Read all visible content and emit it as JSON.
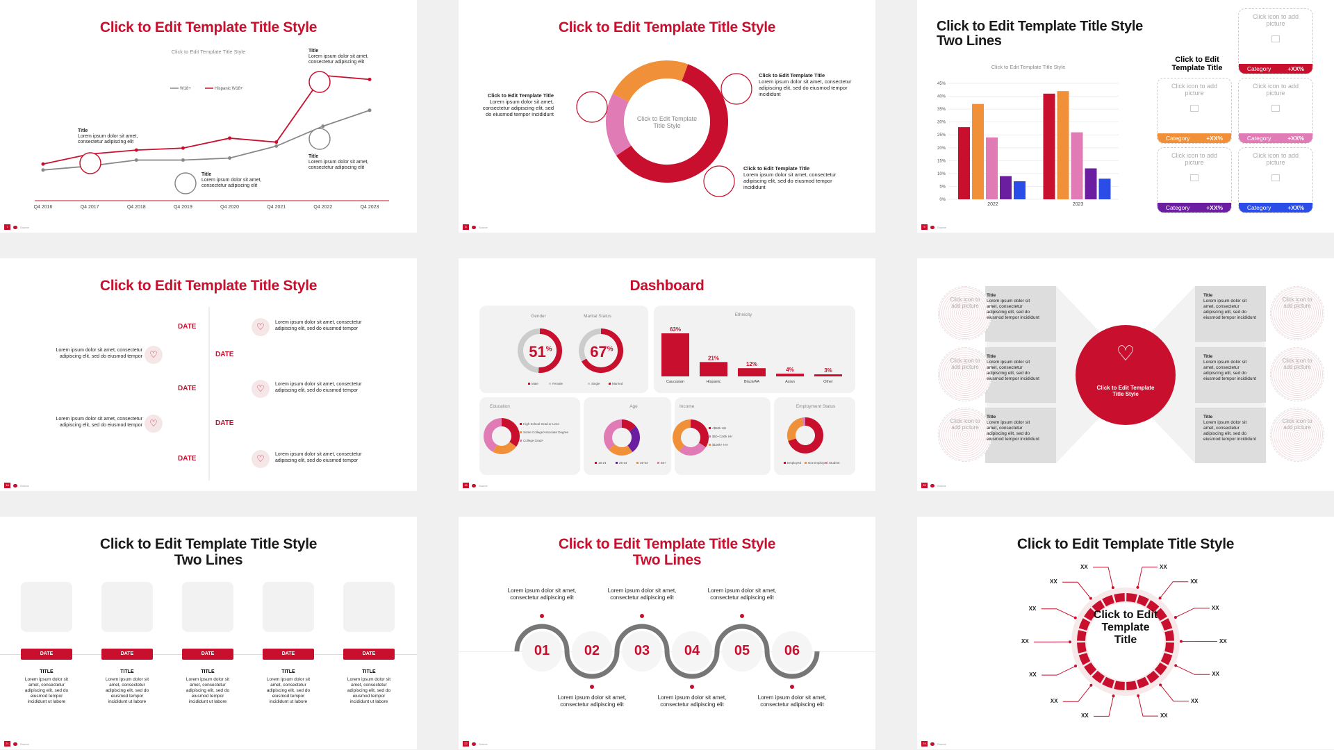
{
  "footer": {
    "source": "Source"
  },
  "slide1": {
    "page": "7",
    "title": "Click to Edit Template Title Style",
    "subtitle": "Click to Edit Template Title Style",
    "legend": [
      "W18+",
      "Hispanic W18+"
    ],
    "title_label": "Title",
    "body": "Lorem ipsum dolor sit amet, consectetur adipiscing elit",
    "chart_data": {
      "type": "line",
      "categories": [
        "Q4 2016",
        "Q4 2017",
        "Q4 2018",
        "Q4 2019",
        "Q4 2020",
        "Q4 2021",
        "Q4 2022",
        "Q4 2023"
      ],
      "series": [
        {
          "name": "W18+",
          "values": [
            12,
            16,
            22,
            22,
            24,
            36,
            56,
            72
          ]
        },
        {
          "name": "Hispanic W18+",
          "values": [
            18,
            28,
            32,
            34,
            44,
            40,
            107,
            103
          ]
        }
      ],
      "ylim": [
        0,
        120
      ],
      "colors": {
        "W18+": "#888888",
        "Hispanic W18+": "#c8102e"
      }
    }
  },
  "slide2": {
    "page": "8",
    "title": "Click to Edit Template Title Style",
    "center": "Click to Edit Template Title Style",
    "callout_title": "Click to Edit Template Title",
    "callout_body": "Lorem ipsum dolor sit amet, consectetur adipiscing elit, sed do eiusmod tempor incididunt",
    "chart_data": {
      "type": "pie",
      "values": [
        60,
        17,
        23
      ],
      "colors": [
        "#c8102e",
        "#e07bb5",
        "#f0913a"
      ]
    }
  },
  "slide3": {
    "page": "9",
    "title": "Click to Edit Template Title Style Two Lines",
    "subtitle": "Click to Edit Template Title Style",
    "side_title": "Click to Edit Template Title",
    "placeholder": "Click icon to add picture",
    "category": "Category",
    "pct": "+XX%",
    "cat_colors": [
      "#c8102e",
      "#f0913a",
      "#e07bb5",
      "#6b1fa0",
      "#2a4de8"
    ],
    "chart_data": {
      "type": "bar",
      "categories": [
        "2022",
        "2023"
      ],
      "series": [
        {
          "values": [
            28,
            41
          ]
        },
        {
          "values": [
            37,
            42
          ]
        },
        {
          "values": [
            24,
            26
          ]
        },
        {
          "values": [
            9,
            12
          ]
        },
        {
          "values": [
            7,
            8
          ]
        }
      ],
      "ylim": [
        0,
        45
      ],
      "yticks": [
        "0%",
        "5%",
        "10%",
        "15%",
        "20%",
        "25%",
        "30%",
        "35%",
        "40%",
        "45%"
      ],
      "colors": [
        "#c8102e",
        "#f0913a",
        "#e07bb5",
        "#6b1fa0",
        "#2a4de8"
      ]
    }
  },
  "slide4": {
    "page": "18",
    "title": "Click to Edit Template Title Style",
    "date": "DATE",
    "body": "Lorem ipsum dolor sit amet, consectetur adipiscing elit, sed do eiusmod tempor"
  },
  "slide5": {
    "page": "19",
    "title": "Dashboard",
    "gender": {
      "label": "Gender",
      "value": "51",
      "pct": "%",
      "legend": [
        "Male",
        "Female"
      ]
    },
    "marital": {
      "label": "Marital Status",
      "value": "67",
      "pct": "%",
      "legend": [
        "Single",
        "Married"
      ]
    },
    "ethnicity": {
      "label": "Ethnicity",
      "chart_data": {
        "type": "bar",
        "categories": [
          "Caucasian",
          "Hispanic",
          "Black/AA",
          "Asian",
          "Other"
        ],
        "values": [
          63,
          21,
          12,
          4,
          3
        ],
        "labels": [
          "63%",
          "21%",
          "12%",
          "4%",
          "3%"
        ]
      }
    },
    "education": {
      "label": "Education",
      "legend": [
        "High School Grad or Less",
        "Some College/Associate Degree",
        "College Grad+"
      ],
      "values": [
        "35%",
        "23%",
        "42%"
      ]
    },
    "age": {
      "label": "Age",
      "legend": [
        "18-24",
        "25-34",
        "35-54",
        "55+"
      ],
      "values": [
        "14%",
        "26%",
        "23%",
        "37%"
      ]
    },
    "income": {
      "label": "Income",
      "legend": [
        "<$50k HH",
        "$50-<100k HH",
        "$100k+ HH"
      ],
      "values": [
        "34%",
        "27%",
        "39%"
      ]
    },
    "employment": {
      "label": "Employment Status",
      "legend": [
        "Employed",
        "Not Employed",
        "Student"
      ],
      "values": [
        "70%",
        "27%",
        "3%"
      ]
    }
  },
  "slide6": {
    "page": "20",
    "center": "Click to Edit Template Title Style",
    "placeholder": "Click icon to add picture",
    "item_title": "Title",
    "body": "Lorem ipsum dolor sit amet, consectetur adipiscing elit, sed do eiusmod tempor incididunt"
  },
  "slide7": {
    "page": "21",
    "title": "Click to Edit Template Title Style Two Lines",
    "date": "DATE",
    "item_title": "TITLE",
    "body": "Lorem ipsum dolor sit amet, consectetur adipiscing elit, sed do eiusmod tempor incididunt ut labore"
  },
  "slide8": {
    "page": "22",
    "title": "Click to Edit Template Title Style Two Lines",
    "steps": [
      "01",
      "02",
      "03",
      "04",
      "05",
      "06"
    ],
    "body": "Lorem ipsum dolor sit amet, consectetur adipiscing elit"
  },
  "slide9": {
    "page": "24",
    "title": "Click to Edit Template Title Style",
    "center": "Click to Edit Template Title",
    "xx": "XX"
  }
}
